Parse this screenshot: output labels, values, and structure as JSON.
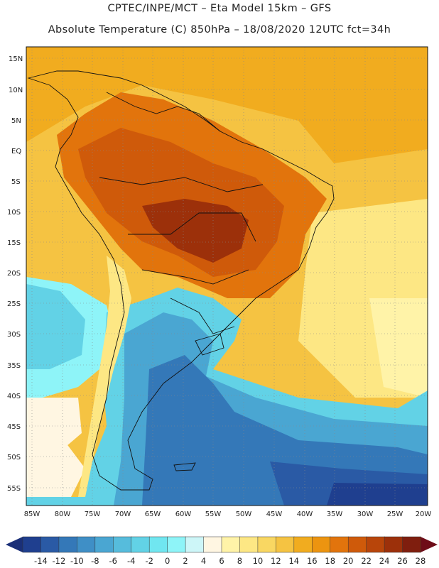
{
  "header": {
    "line1": "CPTEC/INPE/MCT –  Eta Model 15km – GFS",
    "line2": "Absolute Temperature (C) 850hPa – 18/08/2020 12UTC fct=34h"
  },
  "axes": {
    "lat_labels": [
      "15N",
      "10N",
      "5N",
      "EQ",
      "5S",
      "10S",
      "15S",
      "20S",
      "25S",
      "30S",
      "35S",
      "40S",
      "45S",
      "50S",
      "55S"
    ],
    "lon_labels": [
      "85W",
      "80W",
      "75W",
      "70W",
      "65W",
      "60W",
      "55W",
      "50W",
      "45W",
      "40W",
      "35W",
      "30W",
      "25W",
      "20W"
    ]
  },
  "colorbar": {
    "labels": [
      "-14",
      "-12",
      "-10",
      "-8",
      "-6",
      "-4",
      "-2",
      "0",
      "2",
      "4",
      "6",
      "8",
      "10",
      "12",
      "14",
      "16",
      "18",
      "20",
      "22",
      "24",
      "26",
      "28"
    ],
    "colors": [
      "#1f3f8f",
      "#2a5aa5",
      "#3478b8",
      "#3f8fc6",
      "#4aa6d2",
      "#56bcdc",
      "#62d2e6",
      "#70e6f0",
      "#8ef4f8",
      "#cdf6f8",
      "#fff6e2",
      "#fff3a8",
      "#fde784",
      "#f9d762",
      "#f5c342",
      "#f1ac1f",
      "#ec9410",
      "#e2740c",
      "#cf5a0a",
      "#b8450a",
      "#9c300a",
      "#7f1e0e"
    ],
    "left_arrow_color": "#1a2f78",
    "right_arrow_color": "#6e0c18"
  },
  "legend": {
    "cold_ocean": "#2f6cb4",
    "cold_mid": "#56bcdc",
    "cool": "#8ef4f8",
    "mild": "#fff6e2",
    "warm_low": "#fde784",
    "warm": "#f1ac1f",
    "hot": "#e2740c",
    "hotter": "#c9520a",
    "hottest": "#9c300a"
  }
}
